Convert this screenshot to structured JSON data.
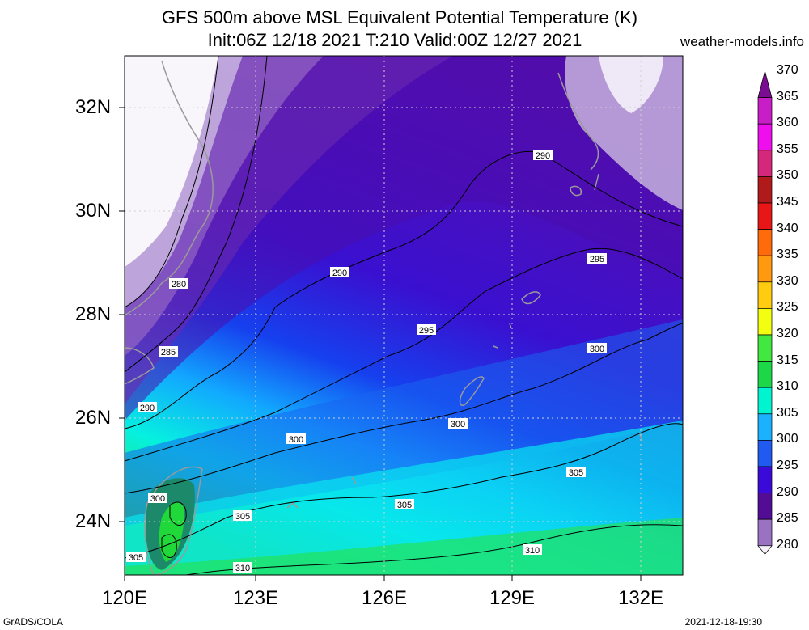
{
  "title": {
    "line1": "GFS 500m above MSL Equivalent Potential Temperature (K)",
    "line2": "Init:06Z 12/18 2021 T:210 Valid:00Z 12/27 2021"
  },
  "site": "weather-models.info",
  "footer": {
    "left": "GrADS/COLA",
    "right": "2021-12-18-19:30"
  },
  "x_ticks": [
    "120E",
    "123E",
    "126E",
    "129E",
    "132E"
  ],
  "y_ticks": [
    "32N",
    "30N",
    "28N",
    "26N",
    "24N"
  ],
  "colorbar": {
    "labels": [
      "370",
      "365",
      "360",
      "355",
      "350",
      "345",
      "340",
      "335",
      "330",
      "325",
      "320",
      "315",
      "310",
      "305",
      "300",
      "295",
      "290",
      "285",
      "280"
    ],
    "colors": [
      "#7a0c92",
      "#c81ec8",
      "#ee0eee",
      "#d6287a",
      "#b01a1a",
      "#e81616",
      "#ff6a0a",
      "#ff9a10",
      "#ffcc10",
      "#f2ff10",
      "#40e840",
      "#1cd848",
      "#00f4d0",
      "#1ab2ff",
      "#205af0",
      "#3a0ad8",
      "#520c96",
      "#9a72c2",
      "#f6f2fa"
    ]
  },
  "contour_labels": [
    {
      "text": "280"
    },
    {
      "text": "285"
    },
    {
      "text": "290"
    },
    {
      "text": "290"
    },
    {
      "text": "290"
    },
    {
      "text": "295"
    },
    {
      "text": "295"
    },
    {
      "text": "300"
    },
    {
      "text": "300"
    },
    {
      "text": "300"
    },
    {
      "text": "300"
    },
    {
      "text": "305"
    },
    {
      "text": "305"
    },
    {
      "text": "305"
    },
    {
      "text": "305"
    },
    {
      "text": "310"
    },
    {
      "text": "310"
    }
  ],
  "colors": {
    "land_outline": "#9a9a9a",
    "contour": "#000000",
    "gridline": "#c8c8c8"
  }
}
